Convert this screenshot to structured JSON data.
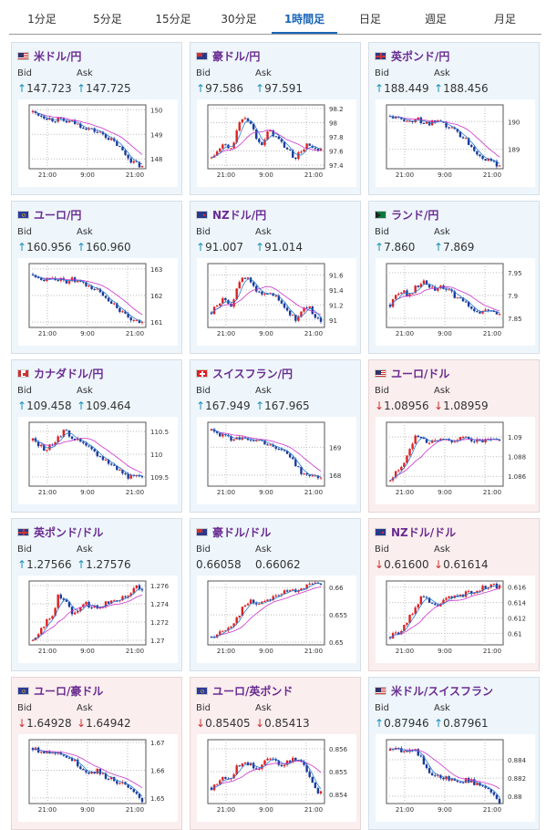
{
  "tabs": [
    {
      "label": "1分足",
      "active": false
    },
    {
      "label": "5分足",
      "active": false
    },
    {
      "label": "15分足",
      "active": false
    },
    {
      "label": "30分足",
      "active": false
    },
    {
      "label": "1時間足",
      "active": true
    },
    {
      "label": "日足",
      "active": false
    },
    {
      "label": "週足",
      "active": false
    },
    {
      "label": "月足",
      "active": false
    }
  ],
  "labels": {
    "bid": "Bid",
    "ask": "Ask"
  },
  "colors": {
    "up": "#1a8fb8",
    "down": "#d03030",
    "title": "#6a2c91",
    "ma": "#cc33cc",
    "ma_short": "#2a7ad0",
    "candle_up": "#dd2222",
    "candle_down": "#1a3a9a"
  },
  "x_ticks": [
    "21:00",
    "9:00",
    "21:00"
  ],
  "pairs": [
    {
      "name": "米ドル/円",
      "flag": "us",
      "direction": "up",
      "bid": "147.723",
      "ask": "147.725",
      "bid_dir": "up",
      "ask_dir": "up",
      "yticks": [
        "150",
        "149",
        "148"
      ],
      "ylim": [
        147.6,
        150.2
      ],
      "trend": [
        149.9,
        149.8,
        149.7,
        149.6,
        149.6,
        149.5,
        149.5,
        149.4,
        149.3,
        149.2,
        149.1,
        149.0,
        148.8,
        148.6,
        148.3,
        148.0,
        147.8,
        147.7
      ]
    },
    {
      "name": "豪ドル/円",
      "flag": "au",
      "direction": "up",
      "bid": "97.586",
      "ask": "97.591",
      "bid_dir": "up",
      "ask_dir": "up",
      "yticks": [
        "98.2",
        "98",
        "97.8",
        "97.6",
        "97.4"
      ],
      "ylim": [
        97.35,
        98.25
      ],
      "trend": [
        97.5,
        97.6,
        97.7,
        97.6,
        97.9,
        98.1,
        98.0,
        97.8,
        97.7,
        97.9,
        97.8,
        97.7,
        97.6,
        97.5,
        97.6,
        97.7,
        97.6,
        97.6
      ]
    },
    {
      "name": "英ポンド/円",
      "flag": "uk",
      "direction": "up",
      "bid": "188.449",
      "ask": "188.456",
      "bid_dir": "up",
      "ask_dir": "up",
      "yticks": [
        "190",
        "189"
      ],
      "ylim": [
        188.3,
        190.6
      ],
      "trend": [
        190.2,
        190.1,
        190.1,
        190.0,
        190.1,
        190.0,
        189.9,
        190.0,
        189.9,
        189.8,
        189.7,
        189.5,
        189.3,
        189.0,
        188.8,
        188.6,
        188.5,
        188.45
      ]
    },
    {
      "name": "ユーロ/円",
      "flag": "eu",
      "direction": "up",
      "bid": "160.956",
      "ask": "160.960",
      "bid_dir": "up",
      "ask_dir": "up",
      "yticks": [
        "163",
        "162",
        "161"
      ],
      "ylim": [
        160.8,
        163.2
      ],
      "trend": [
        162.8,
        162.7,
        162.6,
        162.7,
        162.6,
        162.5,
        162.6,
        162.5,
        162.4,
        162.3,
        162.2,
        162.0,
        161.8,
        161.6,
        161.3,
        161.1,
        161.0,
        160.96
      ]
    },
    {
      "name": "NZドル/円",
      "flag": "nz",
      "direction": "up",
      "bid": "91.007",
      "ask": "91.014",
      "bid_dir": "up",
      "ask_dir": "up",
      "yticks": [
        "91.6",
        "91.4",
        "91.2",
        "91"
      ],
      "ylim": [
        90.9,
        91.75
      ],
      "trend": [
        91.1,
        91.2,
        91.3,
        91.2,
        91.4,
        91.6,
        91.5,
        91.4,
        91.3,
        91.4,
        91.3,
        91.2,
        91.1,
        91.0,
        91.1,
        91.2,
        91.0,
        91.0
      ]
    },
    {
      "name": "ランド/円",
      "flag": "za",
      "direction": "up",
      "bid": "7.860",
      "ask": "7.869",
      "bid_dir": "up",
      "ask_dir": "up",
      "yticks": [
        "7.95",
        "7.9",
        "7.85"
      ],
      "ylim": [
        7.83,
        7.97
      ],
      "trend": [
        7.88,
        7.9,
        7.91,
        7.9,
        7.92,
        7.93,
        7.92,
        7.91,
        7.92,
        7.91,
        7.9,
        7.89,
        7.88,
        7.87,
        7.86,
        7.87,
        7.86,
        7.86
      ]
    },
    {
      "name": "カナダドル/円",
      "flag": "ca",
      "direction": "up",
      "bid": "109.458",
      "ask": "109.464",
      "bid_dir": "up",
      "ask_dir": "up",
      "yticks": [
        "110.5",
        "110",
        "109.5"
      ],
      "ylim": [
        109.3,
        110.7
      ],
      "trend": [
        110.3,
        110.2,
        110.1,
        110.2,
        110.4,
        110.5,
        110.4,
        110.3,
        110.2,
        110.1,
        110.0,
        109.9,
        109.8,
        109.7,
        109.6,
        109.5,
        109.5,
        109.46
      ]
    },
    {
      "name": "スイスフラン/円",
      "flag": "ch",
      "direction": "up",
      "bid": "167.949",
      "ask": "167.965",
      "bid_dir": "up",
      "ask_dir": "up",
      "yticks": [
        "169",
        "168"
      ],
      "ylim": [
        167.6,
        169.9
      ],
      "trend": [
        169.6,
        169.5,
        169.4,
        169.3,
        169.4,
        169.3,
        169.2,
        169.3,
        169.2,
        169.1,
        169.0,
        168.9,
        168.7,
        168.4,
        168.1,
        168.0,
        167.9,
        167.95
      ]
    },
    {
      "name": "ユーロ/ドル",
      "flag": "us",
      "direction": "down",
      "bid": "1.08956",
      "ask": "1.08959",
      "bid_dir": "down",
      "ask_dir": "down",
      "yticks": [
        "1.09",
        "1.088",
        "1.086"
      ],
      "ylim": [
        1.085,
        1.0915
      ],
      "trend": [
        1.0855,
        1.0865,
        1.0872,
        1.0885,
        1.0905,
        1.0898,
        1.0894,
        1.0896,
        1.0898,
        1.0897,
        1.0896,
        1.0899,
        1.0898,
        1.0897,
        1.0895,
        1.0896,
        1.0896,
        1.0896
      ]
    },
    {
      "name": "英ポンド/ドル",
      "flag": "uk",
      "direction": "up",
      "bid": "1.27566",
      "ask": "1.27576",
      "bid_dir": "up",
      "ask_dir": "up",
      "yticks": [
        "1.276",
        "1.274",
        "1.272",
        "1.27"
      ],
      "ylim": [
        1.2695,
        1.2765
      ],
      "trend": [
        1.27,
        1.271,
        1.272,
        1.2725,
        1.275,
        1.2745,
        1.273,
        1.2735,
        1.274,
        1.2738,
        1.2735,
        1.274,
        1.2742,
        1.2745,
        1.2748,
        1.275,
        1.2758,
        1.2757
      ]
    },
    {
      "name": "豪ドル/ドル",
      "flag": "au",
      "direction": "up",
      "bid": "0.66058",
      "ask": "0.66062",
      "bid_dir": "none",
      "ask_dir": "none",
      "yticks": [
        "0.66",
        "0.655",
        "0.65"
      ],
      "ylim": [
        0.6495,
        0.6612
      ],
      "trend": [
        0.651,
        0.6515,
        0.652,
        0.653,
        0.6545,
        0.6565,
        0.6575,
        0.657,
        0.6575,
        0.658,
        0.6585,
        0.659,
        0.6592,
        0.6595,
        0.66,
        0.6603,
        0.6605,
        0.6606
      ]
    },
    {
      "name": "NZドル/ドル",
      "flag": "nz",
      "direction": "down",
      "bid": "0.61600",
      "ask": "0.61614",
      "bid_dir": "down",
      "ask_dir": "down",
      "yticks": [
        "0.616",
        "0.614",
        "0.612",
        "0.61"
      ],
      "ylim": [
        0.6085,
        0.6168
      ],
      "trend": [
        0.6095,
        0.61,
        0.6105,
        0.612,
        0.6135,
        0.615,
        0.614,
        0.6135,
        0.614,
        0.6145,
        0.6148,
        0.615,
        0.6152,
        0.6155,
        0.6158,
        0.616,
        0.6162,
        0.616
      ]
    },
    {
      "name": "ユーロ/豪ドル",
      "flag": "eu",
      "direction": "down",
      "bid": "1.64928",
      "ask": "1.64942",
      "bid_dir": "down",
      "ask_dir": "down",
      "yticks": [
        "1.67",
        "1.66",
        "1.65"
      ],
      "ylim": [
        1.648,
        1.671
      ],
      "trend": [
        1.668,
        1.667,
        1.667,
        1.666,
        1.667,
        1.665,
        1.664,
        1.662,
        1.66,
        1.659,
        1.66,
        1.658,
        1.657,
        1.656,
        1.655,
        1.653,
        1.651,
        1.649
      ]
    },
    {
      "name": "ユーロ/英ポンド",
      "flag": "eu",
      "direction": "down",
      "bid": "0.85405",
      "ask": "0.85413",
      "bid_dir": "down",
      "ask_dir": "down",
      "yticks": [
        "0.856",
        "0.855",
        "0.854"
      ],
      "ylim": [
        0.8536,
        0.8564
      ],
      "trend": [
        0.8543,
        0.8545,
        0.8548,
        0.8547,
        0.8552,
        0.8555,
        0.8553,
        0.8551,
        0.8554,
        0.8556,
        0.8554,
        0.8553,
        0.8555,
        0.8556,
        0.8554,
        0.855,
        0.8542,
        0.8541
      ]
    },
    {
      "name": "米ドル/スイスフラン",
      "flag": "us",
      "direction": "up",
      "bid": "0.87946",
      "ask": "0.87961",
      "bid_dir": "up",
      "ask_dir": "up",
      "yticks": [
        "0.884",
        "0.882",
        "0.88"
      ],
      "ylim": [
        0.8792,
        0.8862
      ],
      "trend": [
        0.885,
        0.8852,
        0.8848,
        0.8853,
        0.885,
        0.884,
        0.8825,
        0.882,
        0.8822,
        0.8818,
        0.882,
        0.8815,
        0.8818,
        0.8815,
        0.8812,
        0.8808,
        0.88,
        0.8795
      ]
    }
  ]
}
